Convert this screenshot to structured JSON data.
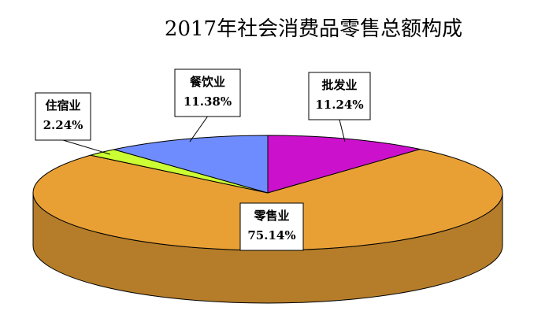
{
  "chart_data": {
    "type": "pie3d",
    "title": "2017年社会消费品零售总额构成",
    "categories": [
      "批发业",
      "零售业",
      "住宿业",
      "餐饮业"
    ],
    "values": [
      11.24,
      75.14,
      2.24,
      11.38
    ],
    "value_labels": [
      "11.24%",
      "75.14%",
      "2.24%",
      "11.38%"
    ],
    "colors": [
      "#cc11cc",
      "#e8a035",
      "#ccff33",
      "#6f8cff"
    ]
  }
}
